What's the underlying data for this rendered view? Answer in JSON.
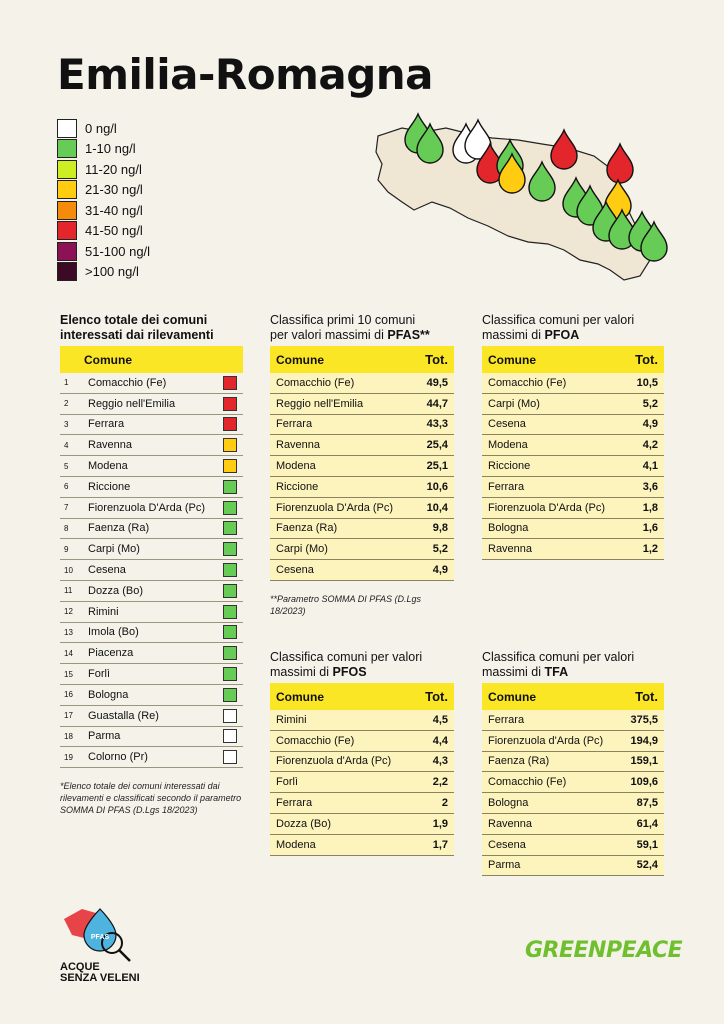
{
  "title": "Emilia-Romagna",
  "legend": [
    {
      "label": "0 ng/l",
      "color": "#ffffff"
    },
    {
      "label": "1-10 ng/l",
      "color": "#66cc55"
    },
    {
      "label": "11-20 ng/l",
      "color": "#ccee22"
    },
    {
      "label": "21-30 ng/l",
      "color": "#ffcc11"
    },
    {
      "label": "31-40 ng/l",
      "color": "#f58a0b"
    },
    {
      "label": "41-50 ng/l",
      "color": "#e3262b"
    },
    {
      "label": "51-100 ng/l",
      "color": "#8c1155"
    },
    {
      "label": ">100 ng/l",
      "color": "#3d0a26"
    }
  ],
  "list": {
    "title_line1": "Elenco totale dei comuni",
    "title_line2": "interessati dai rilevamenti",
    "header": "Comune",
    "rows": [
      {
        "n": "1",
        "name": "Comacchio (Fe)",
        "color": "#e3262b"
      },
      {
        "n": "2",
        "name": "Reggio nell'Emilia",
        "color": "#e3262b"
      },
      {
        "n": "3",
        "name": "Ferrara",
        "color": "#e3262b"
      },
      {
        "n": "4",
        "name": "Ravenna",
        "color": "#ffcc11"
      },
      {
        "n": "5",
        "name": "Modena",
        "color": "#ffcc11"
      },
      {
        "n": "6",
        "name": "Riccione",
        "color": "#66cc55"
      },
      {
        "n": "7",
        "name": "Fiorenzuola D'Arda (Pc)",
        "color": "#66cc55"
      },
      {
        "n": "8",
        "name": "Faenza (Ra)",
        "color": "#66cc55"
      },
      {
        "n": "9",
        "name": "Carpi (Mo)",
        "color": "#66cc55"
      },
      {
        "n": "10",
        "name": "Cesena",
        "color": "#66cc55"
      },
      {
        "n": "11",
        "name": "Dozza (Bo)",
        "color": "#66cc55"
      },
      {
        "n": "12",
        "name": "Rimini",
        "color": "#66cc55"
      },
      {
        "n": "13",
        "name": "Imola (Bo)",
        "color": "#66cc55"
      },
      {
        "n": "14",
        "name": "Piacenza",
        "color": "#66cc55"
      },
      {
        "n": "15",
        "name": "Forlì",
        "color": "#66cc55"
      },
      {
        "n": "16",
        "name": "Bologna",
        "color": "#66cc55"
      },
      {
        "n": "17",
        "name": "Guastalla (Re)",
        "color": "#ffffff"
      },
      {
        "n": "18",
        "name": "Parma",
        "color": "#ffffff"
      },
      {
        "n": "19",
        "name": "Colorno (Pr)",
        "color": "#ffffff"
      }
    ],
    "note": "*Elenco totale dei comuni interessati dai rilevamenti e classificati secondo il parametro SOMMA DI PFAS (D.Lgs 18/2023)"
  },
  "pfas": {
    "title_line1": "Classifica primi 10 comuni",
    "title_line2_pre": "per valori massimi di ",
    "title_line2_bold": "PFAS**",
    "header_name": "Comune",
    "header_val": "Tot.",
    "rows": [
      {
        "name": "Comacchio (Fe)",
        "val": "49,5"
      },
      {
        "name": "Reggio nell'Emilia",
        "val": "44,7"
      },
      {
        "name": "Ferrara",
        "val": "43,3"
      },
      {
        "name": "Ravenna",
        "val": "25,4"
      },
      {
        "name": "Modena",
        "val": "25,1"
      },
      {
        "name": "Riccione",
        "val": "10,6"
      },
      {
        "name": "Fiorenzuola D'Arda (Pc)",
        "val": "10,4"
      },
      {
        "name": "Faenza (Ra)",
        "val": "9,8"
      },
      {
        "name": "Carpi (Mo)",
        "val": "5,2"
      },
      {
        "name": "Cesena",
        "val": "4,9"
      }
    ],
    "note": "**Parametro SOMMA DI PFAS (D.Lgs 18/2023)"
  },
  "pfoa": {
    "title_line1": "Classifica comuni per valori",
    "title_line2_pre": "massimi di ",
    "title_line2_bold": "PFOA",
    "header_name": "Comune",
    "header_val": "Tot.",
    "rows": [
      {
        "name": "Comacchio (Fe)",
        "val": "10,5"
      },
      {
        "name": "Carpi (Mo)",
        "val": "5,2"
      },
      {
        "name": "Cesena",
        "val": "4,9"
      },
      {
        "name": "Modena",
        "val": "4,2"
      },
      {
        "name": "Riccione",
        "val": "4,1"
      },
      {
        "name": "Ferrara",
        "val": "3,6"
      },
      {
        "name": "Fiorenzuola D'Arda (Pc)",
        "val": "1,8"
      },
      {
        "name": "Bologna",
        "val": "1,6"
      },
      {
        "name": "Ravenna",
        "val": "1,2"
      }
    ]
  },
  "pfos": {
    "title_line1": "Classifica comuni per valori",
    "title_line2_pre": "massimi di ",
    "title_line2_bold": "PFOS",
    "header_name": "Comune",
    "header_val": "Tot.",
    "rows": [
      {
        "name": "Rimini",
        "val": "4,5"
      },
      {
        "name": "Comacchio (Fe)",
        "val": "4,4"
      },
      {
        "name": "Fiorenzuola d'Arda (Pc)",
        "val": "4,3"
      },
      {
        "name": "Forlì",
        "val": "2,2"
      },
      {
        "name": "Ferrara",
        "val": "2"
      },
      {
        "name": "Dozza (Bo)",
        "val": "1,9"
      },
      {
        "name": "Modena",
        "val": "1,7"
      }
    ]
  },
  "tfa": {
    "title_line1": "Classifica comuni per valori",
    "title_line2_pre": "massimi di ",
    "title_line2_bold": "TFA",
    "header_name": "Comune",
    "header_val": "Tot.",
    "rows": [
      {
        "name": "Ferrara",
        "val": "375,5"
      },
      {
        "name": "Fiorenzuola d'Arda (Pc)",
        "val": "194,9"
      },
      {
        "name": "Faenza (Ra)",
        "val": "159,1"
      },
      {
        "name": "Comacchio (Fe)",
        "val": "109,6"
      },
      {
        "name": "Bologna",
        "val": "87,5"
      },
      {
        "name": "Ravenna",
        "val": "61,4"
      },
      {
        "name": "Cesena",
        "val": "59,1"
      },
      {
        "name": "Parma",
        "val": "52,4"
      }
    ]
  },
  "map_drops": [
    "#66cc55",
    "#66cc55",
    "#ffffff",
    "#ffffff",
    "#e3262b",
    "#66cc55",
    "#ffcc11",
    "#66cc55",
    "#e3262b",
    "#e3262b",
    "#66cc55",
    "#66cc55",
    "#ffcc11",
    "#66cc55",
    "#66cc55",
    "#66cc55",
    "#66cc55"
  ],
  "logo": {
    "line1": "ACQUE",
    "line2": "SENZA VELENI",
    "badge": "PFAS"
  },
  "brand": "GREENPEACE"
}
